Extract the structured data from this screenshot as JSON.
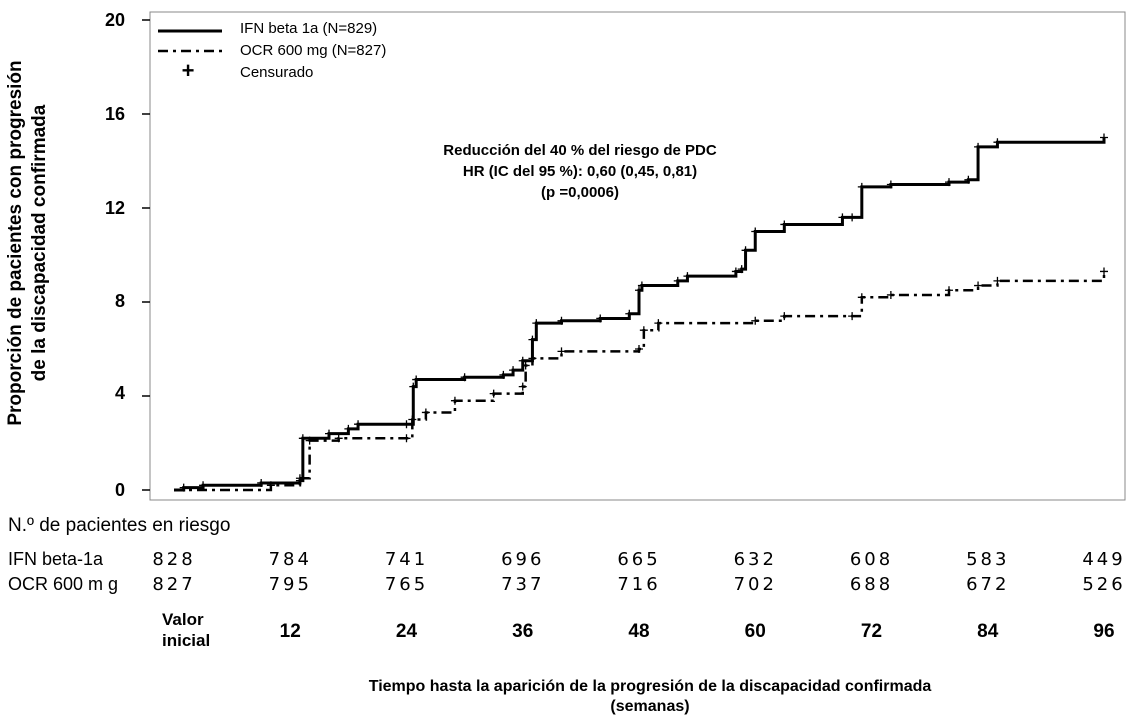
{
  "chart_data": {
    "type": "line",
    "ylabel": "Proporción de pacientes con progresión de la discapacidad confirmada",
    "xlabel": "Tiempo hasta la aparición de la progresión de la discapacidad confirmada (semanas)",
    "xlim": [
      0,
      96
    ],
    "ylim": [
      0,
      20
    ],
    "y_ticks": [
      "0",
      "4",
      "8",
      "12",
      "16",
      "20"
    ],
    "x_ticks": [
      "Valor inicial",
      "12",
      "24",
      "36",
      "48",
      "60",
      "72",
      "84",
      "96"
    ],
    "legend_placement": "top-left",
    "legend": [
      "IFN beta 1a (N=829)",
      "OCR 600 mg (N=827)",
      "Censurado"
    ],
    "censor_symbol": "+",
    "annotation": [
      "Reducción del 40 % del riesgo de PDC",
      "HR (IC del 95 %): 0,60 (0,45, 0,81)",
      "(p =0,0006)"
    ],
    "series": [
      {
        "name": "IFN beta 1a (N=829)",
        "style": "solid",
        "x": [
          0,
          1,
          3,
          9,
          13,
          13.3,
          16,
          18,
          19,
          24,
          24.7,
          25,
          30,
          34,
          35,
          36,
          37,
          37.4,
          40,
          44,
          47,
          48,
          48.3,
          52,
          53,
          58,
          58.6,
          59,
          60,
          63,
          69,
          70,
          71,
          74,
          80,
          82,
          83,
          85,
          96
        ],
        "y": [
          0,
          0.1,
          0.2,
          0.3,
          0.4,
          2.2,
          2.4,
          2.6,
          2.8,
          2.8,
          4.4,
          4.7,
          4.8,
          4.9,
          5.1,
          5.5,
          6.4,
          7.1,
          7.2,
          7.3,
          7.5,
          8.5,
          8.7,
          8.9,
          9.1,
          9.3,
          9.4,
          10.2,
          11.0,
          11.3,
          11.6,
          11.6,
          12.9,
          13.0,
          13.1,
          13.2,
          14.6,
          14.8,
          15.0
        ],
        "risk": [
          828,
          784,
          741,
          696,
          665,
          632,
          608,
          583,
          449
        ]
      },
      {
        "name": "OCR 600 mg (N=827)",
        "style": "dash-dot",
        "x": [
          0,
          10,
          13,
          14,
          17,
          24,
          24.6,
          26,
          29,
          33,
          36,
          36.3,
          37,
          40,
          48,
          48.5,
          50,
          60,
          63,
          70,
          71,
          74,
          80,
          83,
          85,
          96
        ],
        "y": [
          0,
          0.2,
          0.5,
          2.1,
          2.2,
          2.2,
          3.0,
          3.3,
          3.8,
          4.1,
          4.4,
          5.3,
          5.6,
          5.9,
          6.0,
          6.8,
          7.1,
          7.2,
          7.4,
          7.4,
          8.2,
          8.3,
          8.5,
          8.7,
          8.9,
          9.3
        ],
        "risk": [
          827,
          795,
          765,
          737,
          716,
          702,
          688,
          672,
          526
        ]
      }
    ]
  },
  "risk_table": {
    "heading": "N.º de pacientes en riesgo",
    "rows": [
      {
        "label": "IFN beta-1a",
        "values": [
          "828",
          "784",
          "741",
          "696",
          "665",
          "632",
          "608",
          "583",
          "449"
        ]
      },
      {
        "label": "OCR 600 m g",
        "values": [
          "827",
          "795",
          "765",
          "737",
          "716",
          "702",
          "688",
          "672",
          "526"
        ]
      }
    ]
  },
  "x_first_label": [
    "Valor",
    "inicial"
  ],
  "x_tick_numbers": [
    "12",
    "24",
    "36",
    "48",
    "60",
    "72",
    "84",
    "96"
  ],
  "xlabel_lines": [
    "Tiempo hasta la aparición de la progresión de la discapacidad confirmada",
    "(semanas)"
  ],
  "ylabel_lines": [
    "Proporción de pacientes con progresión",
    "de la discapacidad confirmada"
  ]
}
